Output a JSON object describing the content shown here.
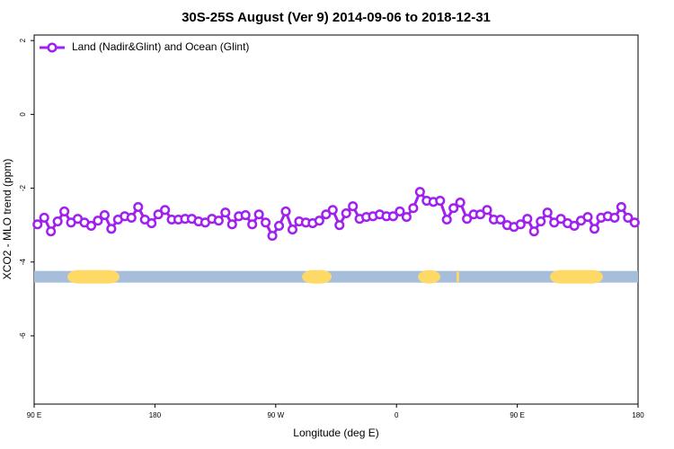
{
  "chart_data": {
    "type": "line",
    "title": "30S-25S August (Ver 9)   2014-09-06 to 2018-12-31",
    "x_label": "Longitude (deg E)",
    "y_label": "XCO2 - MLO trend (ppm)",
    "xlim": [
      90,
      540
    ],
    "ylim": [
      -7.85,
      2.15
    ],
    "xticks": [
      {
        "value": 90,
        "label": "90 E"
      },
      180,
      {
        "value": 270,
        "label": "90 W"
      },
      {
        "value": 360,
        "label": "0"
      },
      {
        "value": 450,
        "label": "90 E"
      },
      {
        "value": 540,
        "label": "180"
      }
    ],
    "yticks": [
      2,
      0,
      -2,
      -4,
      -6
    ],
    "legend": "top-left",
    "x": [
      92.5,
      97.5,
      102.5,
      107.5,
      112.5,
      117.5,
      122.5,
      127.5,
      132.5,
      137.5,
      142.5,
      147.5,
      152.5,
      157.5,
      162.5,
      167.5,
      172.5,
      177.5,
      182.5,
      187.5,
      192.5,
      197.5,
      202.5,
      207.5,
      212.5,
      217.5,
      222.5,
      227.5,
      232.5,
      237.5,
      242.5,
      247.5,
      252.5,
      257.5,
      262.5,
      267.5,
      272.5,
      277.5,
      282.5,
      287.5,
      292.5,
      297.5,
      302.5,
      307.5,
      312.5,
      317.5,
      322.5,
      327.5,
      332.5,
      337.5,
      342.5,
      347.5,
      352.5,
      357.5,
      362.5,
      367.5,
      372.5,
      377.5,
      382.5,
      387.5,
      392.5,
      397.5,
      402.5,
      407.5,
      412.5,
      417.5,
      422.5,
      427.5,
      432.5,
      437.5,
      442.5,
      447.5,
      452.5,
      457.5,
      462.5,
      467.5,
      472.5,
      477.5,
      482.5,
      487.5,
      492.5,
      497.5,
      502.5,
      507.5,
      512.5,
      517.5,
      522.5,
      527.5,
      532.5,
      537.5
    ],
    "series": [
      {
        "name": "Land (Nadir&Glint) and Ocean (Glint)",
        "color": "#a020f0",
        "values": [
          -2.98,
          -2.8,
          -3.17,
          -2.9,
          -2.63,
          -2.93,
          -2.83,
          -2.93,
          -3.02,
          -2.88,
          -2.73,
          -3.1,
          -2.85,
          -2.76,
          -2.8,
          -2.51,
          -2.85,
          -2.95,
          -2.71,
          -2.59,
          -2.85,
          -2.85,
          -2.83,
          -2.83,
          -2.9,
          -2.93,
          -2.83,
          -2.88,
          -2.66,
          -2.98,
          -2.76,
          -2.73,
          -2.98,
          -2.71,
          -2.93,
          -3.29,
          -3.02,
          -2.63,
          -3.12,
          -2.9,
          -2.93,
          -2.95,
          -2.88,
          -2.71,
          -2.59,
          -3.0,
          -2.68,
          -2.49,
          -2.83,
          -2.78,
          -2.76,
          -2.71,
          -2.76,
          -2.76,
          -2.63,
          -2.78,
          -2.54,
          -2.1,
          -2.34,
          -2.37,
          -2.34,
          -2.85,
          -2.54,
          -2.39,
          -2.83,
          -2.71,
          -2.71,
          -2.59,
          -2.85,
          -2.85,
          -3.0,
          -3.05,
          -2.98,
          -2.83,
          -3.17,
          -2.9,
          -2.66,
          -2.93,
          -2.83,
          -2.95,
          -3.02,
          -2.88,
          -2.78,
          -3.1,
          -2.8,
          -2.76,
          -2.8,
          -2.51,
          -2.8,
          -2.93
        ]
      }
    ],
    "band_y": -4.4,
    "band_color": "#a6bddb",
    "land_color": "#ffd966",
    "land_segments": [
      [
        114.8,
        153.6
      ],
      [
        289.6,
        311.7
      ],
      [
        376,
        392.7
      ],
      [
        404.7,
        406.7
      ],
      [
        474.4,
        513.9
      ]
    ]
  }
}
